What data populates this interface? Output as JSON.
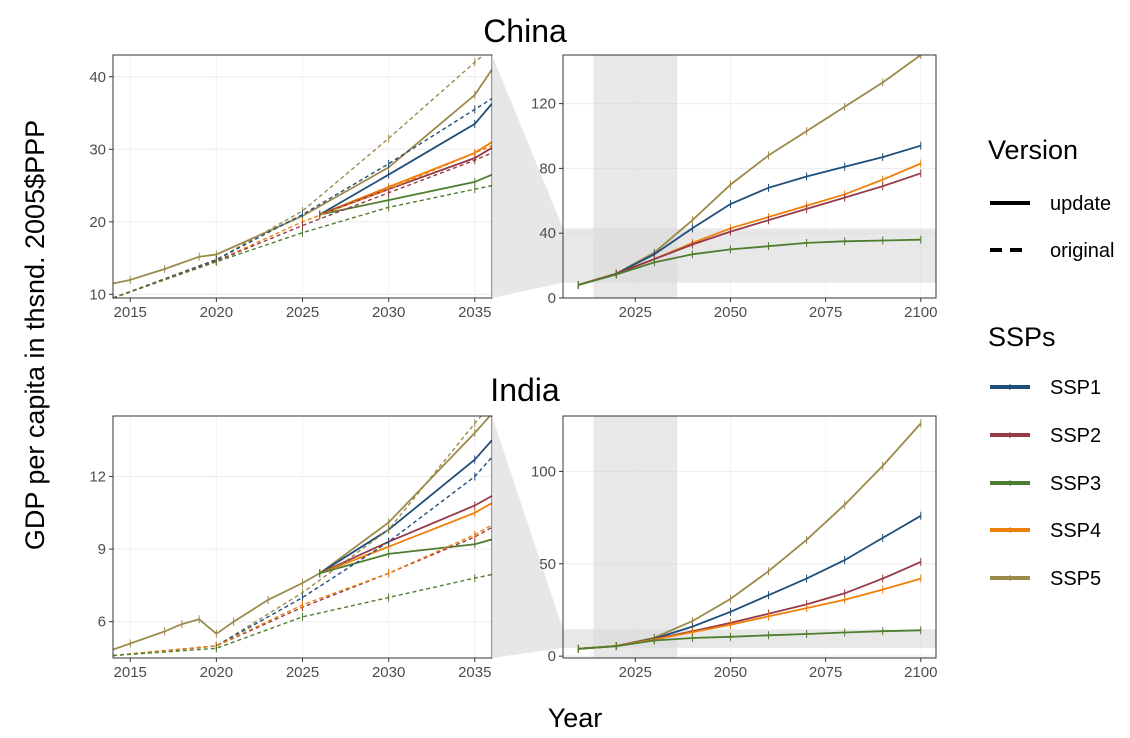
{
  "ylabel": "GDP per capita in thsnd. 2005$PPP",
  "xlabel": "Year",
  "legend": {
    "version": {
      "title": "Version",
      "items": [
        {
          "label": "update",
          "style": "solid"
        },
        {
          "label": "original",
          "style": "dashed"
        }
      ]
    },
    "ssps": {
      "title": "SSPs",
      "items": [
        {
          "label": "SSP1",
          "color": "#1f4e79"
        },
        {
          "label": "SSP2",
          "color": "#963a46"
        },
        {
          "label": "SSP3",
          "color": "#4f7d2f"
        },
        {
          "label": "SSP4",
          "color": "#f07f09"
        },
        {
          "label": "SSP5",
          "color": "#9b8a4a"
        }
      ]
    }
  },
  "chart_data": [
    {
      "type": "line",
      "title": "China",
      "panel": "zoom",
      "xlim": [
        2014,
        2036
      ],
      "ylim": [
        9.5,
        43
      ],
      "xticks": [
        2015,
        2020,
        2025,
        2030,
        2035
      ],
      "yticks": [
        10,
        20,
        30,
        40
      ],
      "series": [
        {
          "name": "SSP5",
          "version": "update",
          "x": [
            2013,
            2015,
            2017,
            2019,
            2020,
            2025,
            2030,
            2035,
            2036
          ],
          "y": [
            11.0,
            12.0,
            13.5,
            15.2,
            15.5,
            20.8,
            27.5,
            37.5,
            41.0
          ]
        },
        {
          "name": "SSP1",
          "version": "update",
          "x": [
            2026,
            2030,
            2035,
            2036
          ],
          "y": [
            21.0,
            26.5,
            33.5,
            36.3
          ]
        },
        {
          "name": "SSP4",
          "version": "update",
          "x": [
            2026,
            2030,
            2035,
            2036
          ],
          "y": [
            21.0,
            24.8,
            29.5,
            31.0
          ]
        },
        {
          "name": "SSP2",
          "version": "update",
          "x": [
            2026,
            2030,
            2035,
            2036
          ],
          "y": [
            21.0,
            24.5,
            28.8,
            30.2
          ]
        },
        {
          "name": "SSP3",
          "version": "update",
          "x": [
            2026,
            2030,
            2035,
            2036
          ],
          "y": [
            21.0,
            23.0,
            25.5,
            26.5
          ]
        },
        {
          "name": "SSP5",
          "version": "original",
          "x": [
            2014,
            2020,
            2025,
            2030,
            2035,
            2036
          ],
          "y": [
            9.5,
            14.8,
            21.5,
            31.5,
            42.0,
            44.0
          ]
        },
        {
          "name": "SSP1",
          "version": "original",
          "x": [
            2014,
            2020,
            2025,
            2030,
            2035,
            2036
          ],
          "y": [
            9.5,
            14.8,
            21.0,
            28.0,
            35.5,
            37.0
          ]
        },
        {
          "name": "SSP4",
          "version": "original",
          "x": [
            2014,
            2020,
            2025,
            2030,
            2035,
            2036
          ],
          "y": [
            9.5,
            14.6,
            20.0,
            24.5,
            29.5,
            30.5
          ]
        },
        {
          "name": "SSP2",
          "version": "original",
          "x": [
            2014,
            2020,
            2025,
            2030,
            2035,
            2036
          ],
          "y": [
            9.5,
            14.6,
            19.5,
            24.0,
            28.5,
            29.5
          ]
        },
        {
          "name": "SSP3",
          "version": "original",
          "x": [
            2014,
            2020,
            2025,
            2030,
            2035,
            2036
          ],
          "y": [
            9.5,
            14.5,
            18.5,
            22.0,
            24.5,
            25.0
          ]
        }
      ]
    },
    {
      "type": "line",
      "title": "China",
      "panel": "full",
      "xlim": [
        2006,
        2104
      ],
      "ylim": [
        0,
        150
      ],
      "xticks": [
        2025,
        2050,
        2075,
        2100
      ],
      "yticks": [
        0,
        40,
        80,
        120
      ],
      "highlight_x": [
        2014,
        2036
      ],
      "highlight_y": [
        9.5,
        43
      ],
      "series": [
        {
          "name": "SSP5",
          "x": [
            2010,
            2020,
            2030,
            2040,
            2050,
            2060,
            2070,
            2080,
            2090,
            2100
          ],
          "y": [
            8,
            15,
            28,
            48,
            70,
            88,
            103,
            118,
            133,
            150
          ]
        },
        {
          "name": "SSP1",
          "x": [
            2010,
            2020,
            2030,
            2040,
            2050,
            2060,
            2070,
            2080,
            2090,
            2100
          ],
          "y": [
            8,
            15,
            27,
            43,
            58,
            68,
            75,
            81,
            87,
            94
          ]
        },
        {
          "name": "SSP4",
          "x": [
            2010,
            2020,
            2030,
            2040,
            2050,
            2060,
            2070,
            2080,
            2090,
            2100
          ],
          "y": [
            8,
            15,
            24,
            34,
            43,
            50,
            57,
            64,
            73,
            83
          ]
        },
        {
          "name": "SSP2",
          "x": [
            2010,
            2020,
            2030,
            2040,
            2050,
            2060,
            2070,
            2080,
            2090,
            2100
          ],
          "y": [
            8,
            15,
            24,
            33,
            41,
            48,
            55,
            62,
            69,
            77
          ]
        },
        {
          "name": "SSP3",
          "x": [
            2010,
            2020,
            2030,
            2040,
            2050,
            2060,
            2070,
            2080,
            2090,
            2100
          ],
          "y": [
            8,
            14.5,
            22,
            27,
            30,
            32,
            34,
            35,
            35.5,
            36
          ]
        }
      ]
    },
    {
      "type": "line",
      "title": "India",
      "panel": "zoom",
      "xlim": [
        2014,
        2036
      ],
      "ylim": [
        4.5,
        14.5
      ],
      "xticks": [
        2015,
        2020,
        2025,
        2030,
        2035
      ],
      "yticks": [
        6,
        9,
        12
      ],
      "series": [
        {
          "name": "SSP5",
          "version": "update",
          "x": [
            2013,
            2015,
            2017,
            2018,
            2019,
            2020,
            2021,
            2023,
            2025,
            2026,
            2030,
            2035,
            2036
          ],
          "y": [
            4.6,
            5.1,
            5.6,
            5.9,
            6.1,
            5.5,
            6.0,
            6.9,
            7.6,
            8.0,
            10.1,
            13.8,
            14.6
          ]
        },
        {
          "name": "SSP1",
          "version": "update",
          "x": [
            2026,
            2030,
            2035,
            2036
          ],
          "y": [
            8.0,
            9.8,
            12.7,
            13.5
          ]
        },
        {
          "name": "SSP2",
          "version": "update",
          "x": [
            2026,
            2030,
            2035,
            2036
          ],
          "y": [
            8.0,
            9.3,
            10.8,
            11.2
          ]
        },
        {
          "name": "SSP4",
          "version": "update",
          "x": [
            2026,
            2030,
            2035,
            2036
          ],
          "y": [
            8.0,
            9.1,
            10.5,
            10.9
          ]
        },
        {
          "name": "SSP3",
          "version": "update",
          "x": [
            2026,
            2030,
            2035,
            2036
          ],
          "y": [
            8.0,
            8.8,
            9.2,
            9.4
          ]
        },
        {
          "name": "SSP5",
          "version": "original",
          "x": [
            2014,
            2020,
            2025,
            2030,
            2035,
            2036
          ],
          "y": [
            4.6,
            5.0,
            7.2,
            9.8,
            14.2,
            15.0
          ]
        },
        {
          "name": "SSP1",
          "version": "original",
          "x": [
            2014,
            2020,
            2025,
            2030,
            2035,
            2036
          ],
          "y": [
            4.6,
            5.0,
            7.0,
            9.3,
            12.0,
            12.8
          ]
        },
        {
          "name": "SSP2",
          "version": "original",
          "x": [
            2014,
            2020,
            2025,
            2030,
            2035,
            2036
          ],
          "y": [
            4.6,
            5.0,
            6.6,
            8.0,
            9.5,
            9.9
          ]
        },
        {
          "name": "SSP4",
          "version": "original",
          "x": [
            2014,
            2020,
            2025,
            2030,
            2035,
            2036
          ],
          "y": [
            4.6,
            5.0,
            6.7,
            8.0,
            9.6,
            10.0
          ]
        },
        {
          "name": "SSP3",
          "version": "original",
          "x": [
            2014,
            2020,
            2025,
            2030,
            2035,
            2036
          ],
          "y": [
            4.6,
            4.9,
            6.2,
            7.0,
            7.8,
            7.95
          ]
        }
      ]
    },
    {
      "type": "line",
      "title": "India",
      "panel": "full",
      "xlim": [
        2006,
        2104
      ],
      "ylim": [
        -1,
        130
      ],
      "xticks": [
        2025,
        2050,
        2075,
        2100
      ],
      "yticks": [
        0,
        50,
        100
      ],
      "highlight_x": [
        2014,
        2036
      ],
      "highlight_y": [
        4.5,
        14.5
      ],
      "series": [
        {
          "name": "SSP5",
          "x": [
            2010,
            2020,
            2030,
            2040,
            2050,
            2060,
            2070,
            2080,
            2090,
            2100
          ],
          "y": [
            4,
            5.5,
            10,
            19,
            31,
            46,
            63,
            82,
            103,
            126
          ]
        },
        {
          "name": "SSP1",
          "x": [
            2010,
            2020,
            2030,
            2040,
            2050,
            2060,
            2070,
            2080,
            2090,
            2100
          ],
          "y": [
            4,
            5.5,
            9.5,
            16,
            24,
            33,
            42,
            52,
            64,
            76
          ]
        },
        {
          "name": "SSP2",
          "x": [
            2010,
            2020,
            2030,
            2040,
            2050,
            2060,
            2070,
            2080,
            2090,
            2100
          ],
          "y": [
            4,
            5.5,
            9.2,
            13.5,
            18,
            23,
            28,
            34,
            42,
            51
          ]
        },
        {
          "name": "SSP4",
          "x": [
            2010,
            2020,
            2030,
            2040,
            2050,
            2060,
            2070,
            2080,
            2090,
            2100
          ],
          "y": [
            4,
            5.5,
            9.0,
            13,
            17,
            21.5,
            26,
            30.5,
            36,
            42
          ]
        },
        {
          "name": "SSP3",
          "x": [
            2010,
            2020,
            2030,
            2040,
            2050,
            2060,
            2070,
            2080,
            2090,
            2100
          ],
          "y": [
            4,
            5.4,
            8.5,
            9.8,
            10.5,
            11.3,
            12,
            12.8,
            13.5,
            14
          ]
        }
      ]
    }
  ]
}
